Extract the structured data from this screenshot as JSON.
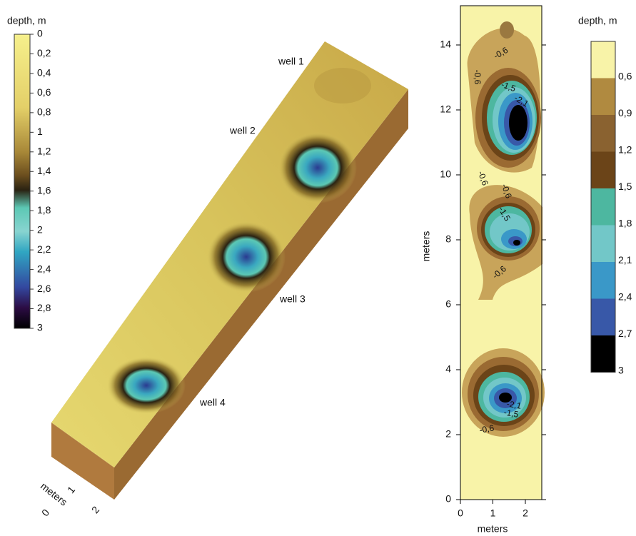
{
  "left_colorbar": {
    "title": "depth, m",
    "ticks": [
      "0",
      "0,2",
      "0,4",
      "0,6",
      "0,8",
      "1",
      "1,2",
      "1,4",
      "1,6",
      "1,8",
      "2",
      "2,2",
      "2,4",
      "2,6",
      "2,8",
      "3"
    ]
  },
  "render3d": {
    "wells": [
      "well 1",
      "well 2",
      "well 3",
      "well 4"
    ],
    "axis_title": "meters",
    "axis_ticks": [
      "0",
      "1",
      "2"
    ]
  },
  "contour_map": {
    "y_title": "meters",
    "y_ticks": [
      "0",
      "2",
      "4",
      "6",
      "8",
      "10",
      "12",
      "14"
    ],
    "x_title": "meters",
    "x_ticks": [
      "0",
      "1",
      "2"
    ],
    "contour_labels": [
      "-0,6",
      "-0,6",
      "-1,5",
      "-2,1",
      "-0,6",
      "-0,6",
      "-1,5",
      "-0,6",
      "-2,1",
      "-1,5",
      "-0,6"
    ]
  },
  "right_colorbar": {
    "title": "depth, m",
    "ticks": [
      "0,6",
      "0,9",
      "1,2",
      "1,5",
      "1,8",
      "2,1",
      "2,4",
      "2,7",
      "3"
    ]
  }
}
